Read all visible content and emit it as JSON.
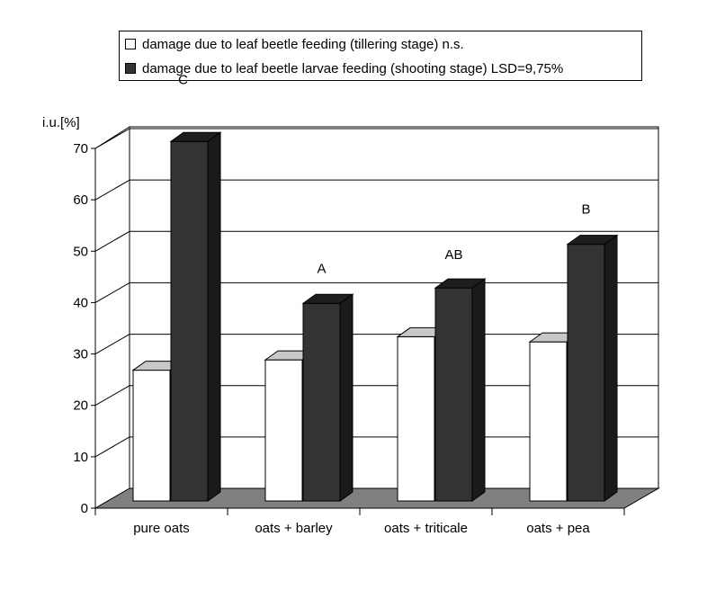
{
  "chart_data": {
    "type": "bar",
    "ylabel": "i.u.[%]",
    "ylim": [
      0,
      70
    ],
    "yticks": [
      0,
      10,
      20,
      30,
      40,
      50,
      60,
      70
    ],
    "grid": true,
    "three_d": true,
    "legend_position": "top",
    "categories": [
      "pure oats",
      "oats + barley",
      "oats + triticale",
      "oats + pea"
    ],
    "series": [
      {
        "name": "damage due to leaf beetle feeding (tillering stage) n.s.",
        "color": "#ffffff",
        "values": [
          23,
          25,
          29.5,
          28.5
        ]
      },
      {
        "name": "damage due to leaf beetle larvae feeding (shooting stage) LSD=9,75%",
        "color": "#333333",
        "values": [
          67.5,
          36,
          39,
          47.5
        ]
      }
    ],
    "annotations": [
      "C",
      "A",
      "AB",
      "B"
    ],
    "colors": {
      "back_wall": "#ffffff",
      "floor": "#808080",
      "grid": "#000000"
    }
  }
}
